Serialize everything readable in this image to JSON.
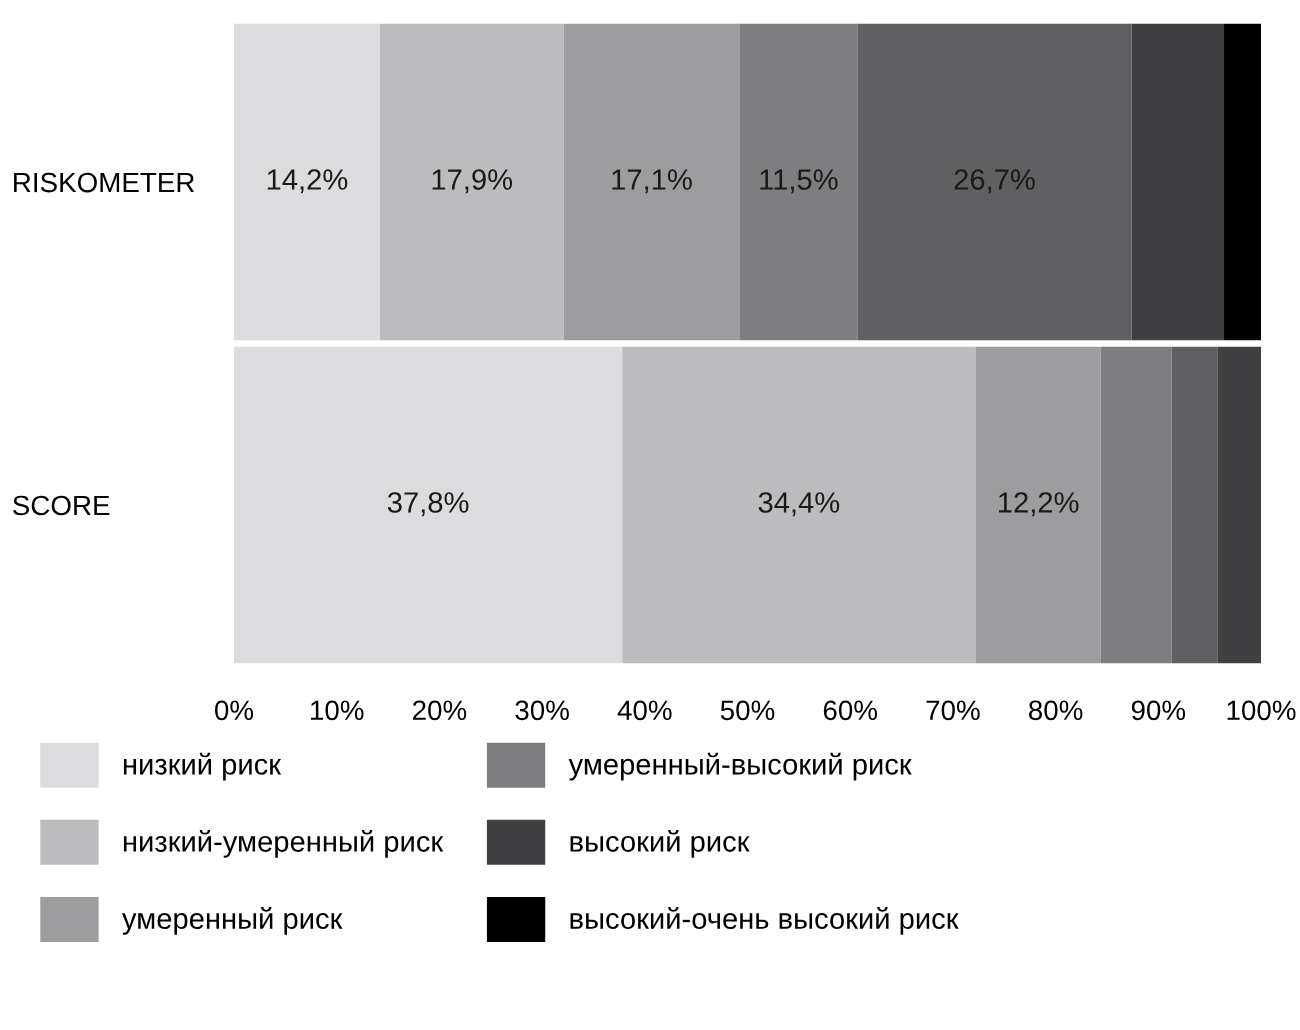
{
  "chart_data": {
    "type": "bar",
    "orientation": "horizontal",
    "stacked": true,
    "categories": [
      "RISKOMETER",
      "SCORE"
    ],
    "series": [
      {
        "name": "низкий риск",
        "color": "#dcdcde",
        "values": [
          14.2,
          37.8
        ],
        "value_labels": [
          "14,2%",
          "37,8%"
        ]
      },
      {
        "name": "низкий-умеренный риск",
        "color": "#bcbcbe",
        "values": [
          17.9,
          34.4
        ],
        "value_labels": [
          "17,9%",
          "34,4%"
        ]
      },
      {
        "name": "умеренный риск",
        "color": "#9d9da0",
        "values": [
          17.1,
          12.2
        ],
        "value_labels": [
          "17,1%",
          "12,2%"
        ]
      },
      {
        "name": "умеренный-высокий риск",
        "color": "#7e7e81",
        "values": [
          11.5,
          6.9
        ],
        "value_labels": [
          "11,5%",
          null
        ]
      },
      {
        "color": "#606062",
        "values": [
          26.7,
          4.5
        ],
        "value_labels": [
          "26,7%",
          null
        ]
      },
      {
        "name": "высокий риск",
        "color": "#404042",
        "values": [
          9.0,
          4.2
        ],
        "value_labels": [
          null,
          null
        ]
      },
      {
        "name": "высокий-очень высокий риск",
        "color": "#000000",
        "values": [
          3.6,
          null
        ],
        "value_labels": [
          null,
          null
        ]
      }
    ],
    "xlim": [
      0,
      100
    ],
    "xticks": [
      {
        "value": 0,
        "label": "0%"
      },
      {
        "value": 10,
        "label": "10%"
      },
      {
        "value": 20,
        "label": "20%"
      },
      {
        "value": 30,
        "label": "30%"
      },
      {
        "value": 40,
        "label": "40%"
      },
      {
        "value": 50,
        "label": "50%"
      },
      {
        "value": 60,
        "label": "60%"
      },
      {
        "value": 70,
        "label": "70%"
      },
      {
        "value": 80,
        "label": "80%"
      },
      {
        "value": 90,
        "label": "90%"
      },
      {
        "value": 100,
        "label": "100%"
      }
    ],
    "grid": false,
    "legend": "bottom"
  }
}
